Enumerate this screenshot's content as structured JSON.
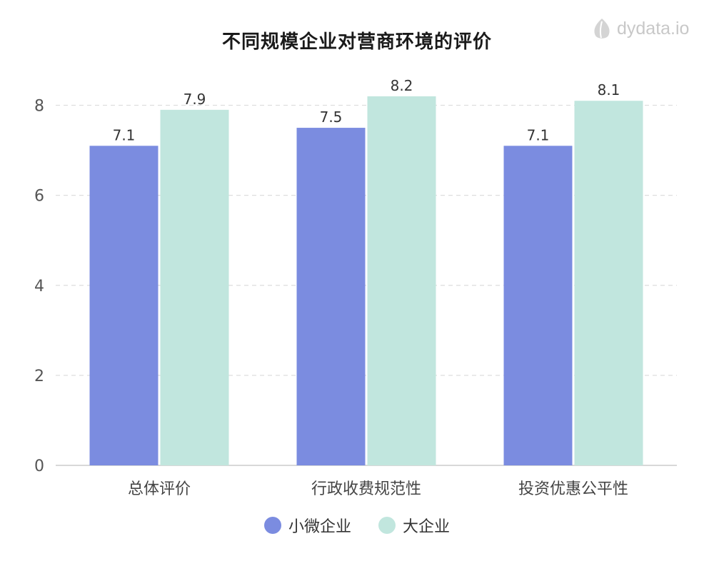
{
  "colors": {
    "small_micro": "#7b8ce0",
    "large": "#c1e6de",
    "grid": "#dddddd",
    "axis": "#cccccc"
  },
  "watermark": {
    "text": "dydata.io",
    "icon": "leaf-icon"
  },
  "chart_data": {
    "type": "bar",
    "title": "不同规模企业对营商环境的评价",
    "xlabel": "",
    "ylabel": "",
    "categories": [
      "总体评价",
      "行政收费规范性",
      "投资优惠公平性"
    ],
    "series": [
      {
        "name": "小微企业",
        "values": [
          7.1,
          7.5,
          7.1
        ],
        "color": "#7b8ce0"
      },
      {
        "name": "大企业",
        "values": [
          7.9,
          8.2,
          8.1
        ],
        "color": "#c1e6de"
      }
    ],
    "ylim": [
      0,
      8.5
    ],
    "yticks": [
      0,
      2,
      4,
      6,
      8
    ],
    "grid": true,
    "legend": "bottom-center"
  }
}
